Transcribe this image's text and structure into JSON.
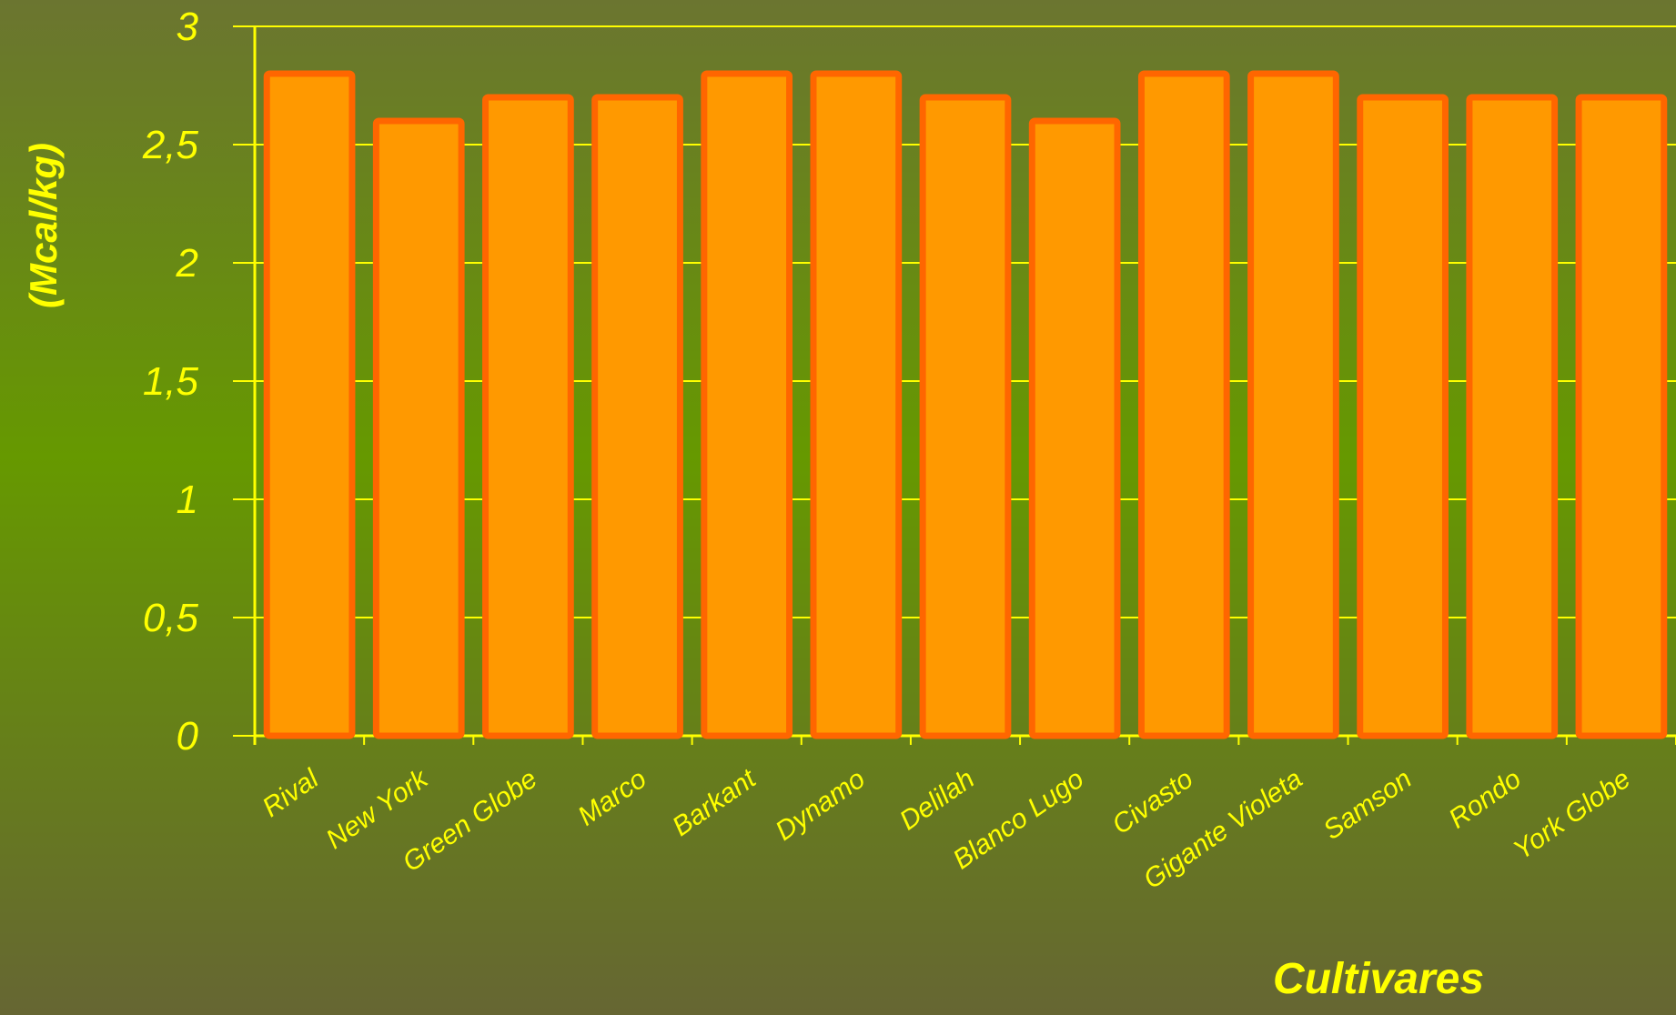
{
  "chart_data": {
    "type": "bar",
    "x_label": "Cultivares",
    "y_label": "(Mcal/kg)",
    "categories": [
      "Rival",
      "New York",
      "Green Globe",
      "Marco",
      "Barkant",
      "Dynamo",
      "Delilah",
      "Blanco Lugo",
      "Civasto",
      "Gigante Violeta",
      "Samson",
      "Rondo",
      "York Globe"
    ],
    "values": [
      2.8,
      2.6,
      2.7,
      2.7,
      2.8,
      2.8,
      2.7,
      2.6,
      2.8,
      2.8,
      2.7,
      2.7,
      2.7
    ],
    "color": "#ff9900",
    "edge_color": "#ff6600",
    "ylim": [
      0,
      3
    ],
    "yticks": [
      0,
      {
        "value": 0.5,
        "label": "0,5"
      },
      1,
      {
        "value": 1.5,
        "label": "1,5"
      },
      2,
      {
        "value": 2.5,
        "label": "2,5"
      },
      3
    ],
    "grid": true
  }
}
